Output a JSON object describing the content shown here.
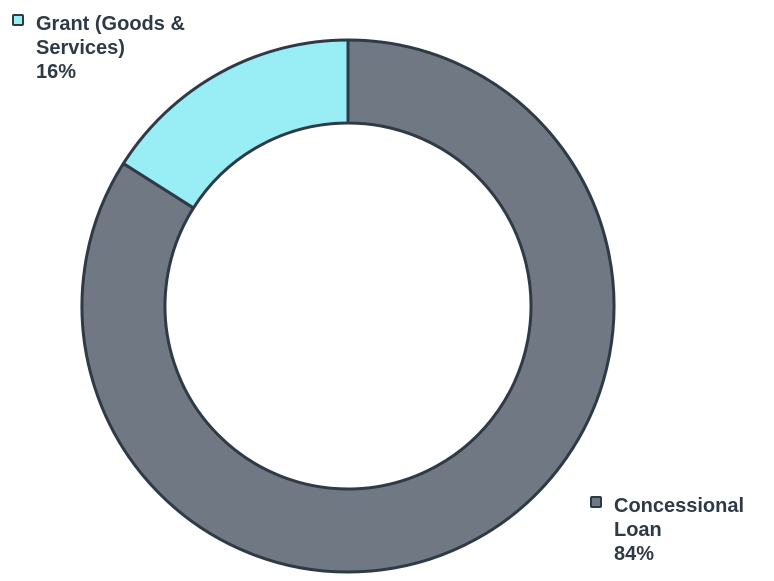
{
  "chart_data": {
    "type": "pie",
    "variant": "donut",
    "categories": [
      "Concessional Loan",
      "Grant (Goods & Services)"
    ],
    "values": [
      84,
      16
    ],
    "value_unit": "%",
    "labels": [
      {
        "name": "Concessional Loan",
        "percent": "84%"
      },
      {
        "name": "Grant (Goods & Services)",
        "percent": "16%"
      }
    ],
    "colors": [
      "#707883",
      "#99eef6"
    ],
    "stroke_color": "#2f3a47",
    "legend_placement": "outside labels (top-left and bottom-right)"
  }
}
